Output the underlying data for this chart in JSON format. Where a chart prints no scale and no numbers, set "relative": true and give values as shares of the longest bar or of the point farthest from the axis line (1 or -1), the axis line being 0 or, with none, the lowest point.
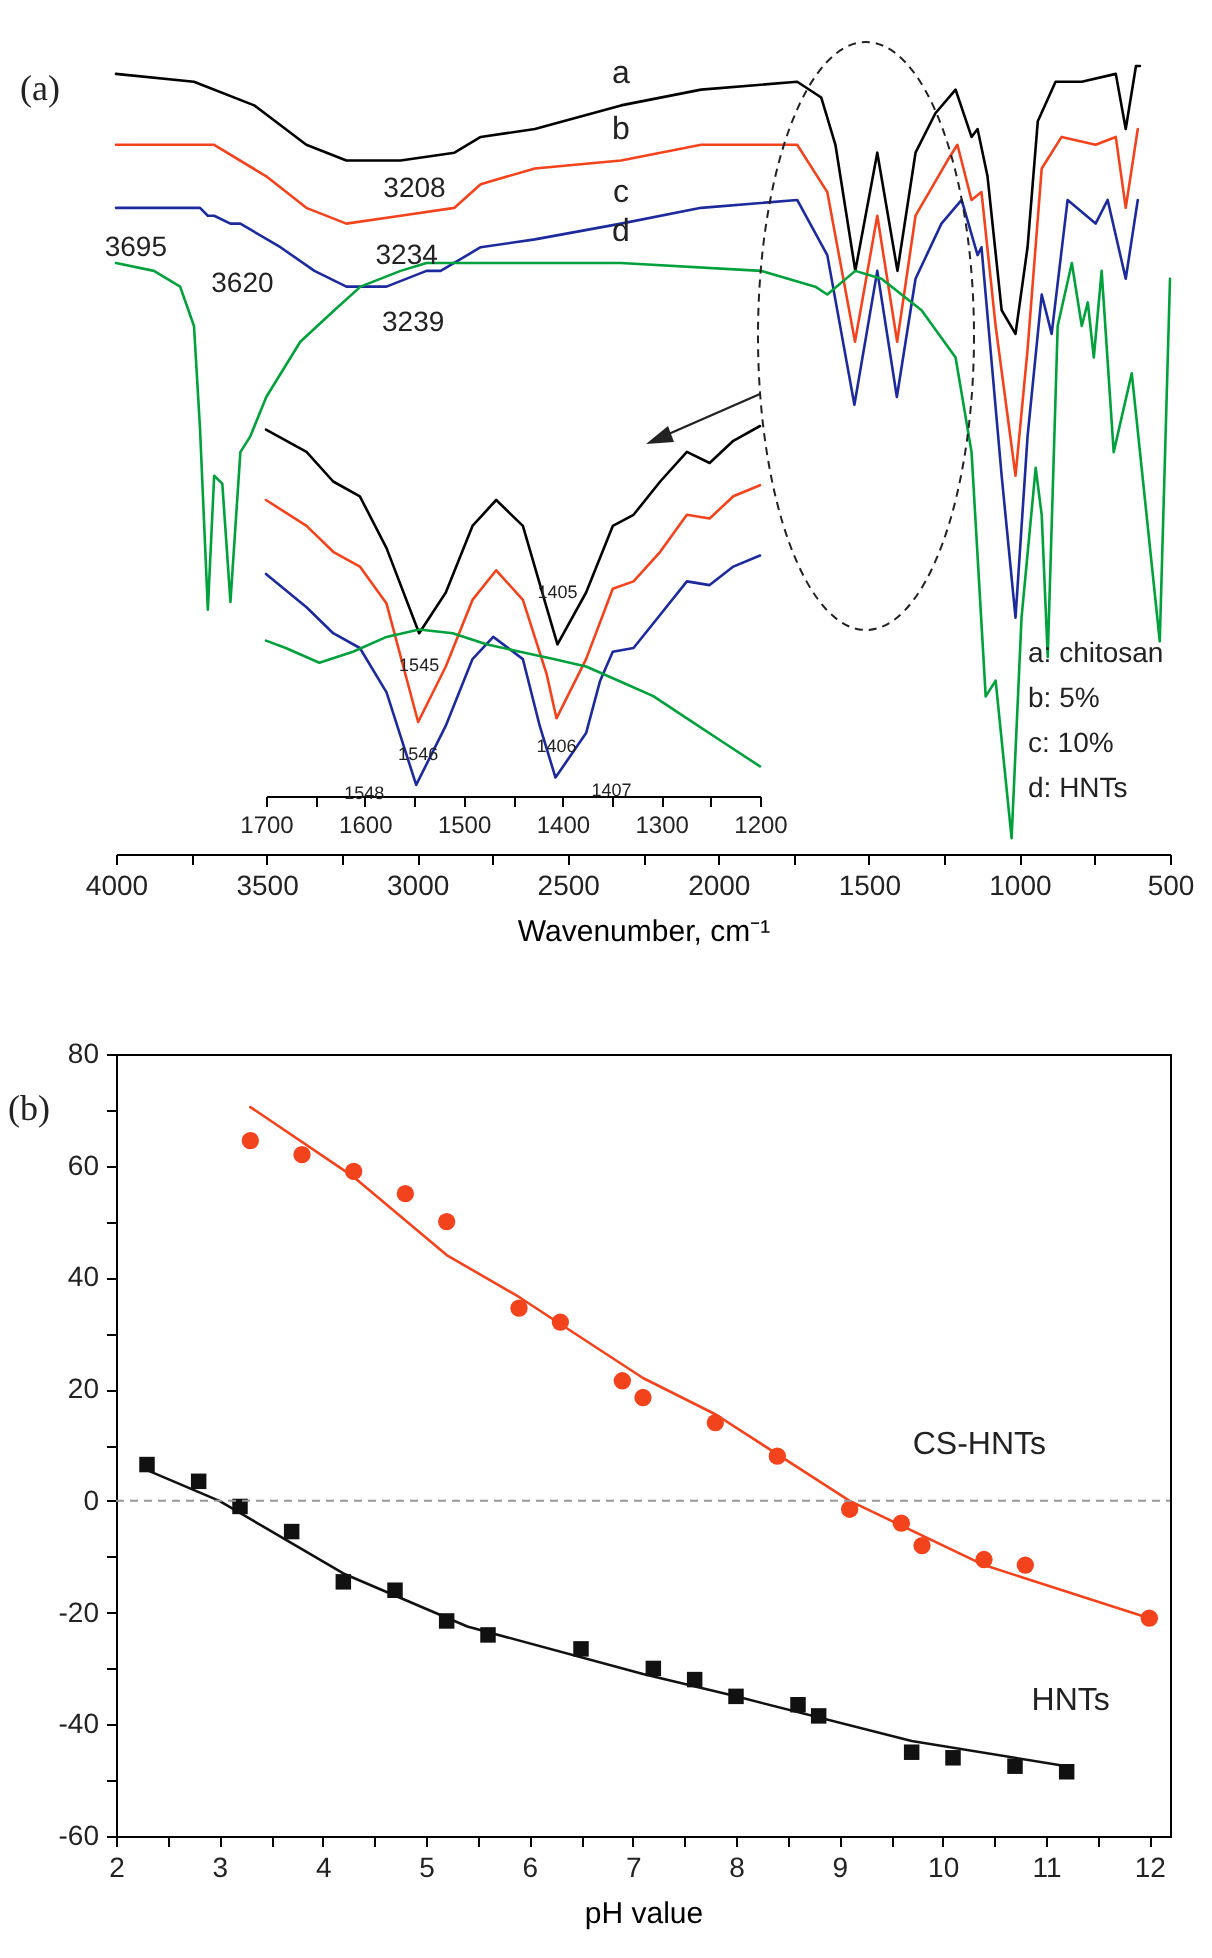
{
  "chart_data": [
    {
      "type": "line",
      "relative": true,
      "xlim": [
        4000,
        500
      ],
      "xlabel": "Wavenumber, cm⁻¹",
      "xticks": [
        4000,
        {
          "value": 3750,
          "label": null
        },
        3500,
        {
          "value": 3250,
          "label": null
        },
        3000,
        {
          "value": 2750,
          "label": null
        },
        2500,
        {
          "value": 2250,
          "label": null
        },
        2000,
        {
          "value": 1750,
          "label": null
        },
        1500,
        {
          "value": 1250,
          "label": null
        },
        1000,
        {
          "value": 750,
          "label": null
        },
        500
      ],
      "series": [
        {
          "name": "a",
          "color": "#000000",
          "x": [
            4000,
            3741,
            3541,
            3368,
            3235,
            3055,
            2876,
            2789,
            2609,
            2323,
            2057,
            1738,
            1658,
            1611,
            1545,
            1472,
            1405,
            1345,
            1279,
            1212,
            1159,
            1139,
            1106,
            1059,
            1013,
            973,
            939,
            880,
            793,
            680,
            647,
            613,
            600
          ],
          "values": [
            0.99,
            0.98,
            0.95,
            0.9,
            0.88,
            0.88,
            0.89,
            0.91,
            0.92,
            0.95,
            0.97,
            0.98,
            0.96,
            0.9,
            0.74,
            0.89,
            0.74,
            0.89,
            0.94,
            0.97,
            0.91,
            0.92,
            0.86,
            0.69,
            0.66,
            0.77,
            0.93,
            0.98,
            0.98,
            0.99,
            0.92,
            1,
            1
          ]
        },
        {
          "name": "b",
          "color": "#f2431d",
          "x": [
            4000,
            3674,
            3501,
            3368,
            3235,
            3055,
            2876,
            2789,
            2609,
            2323,
            2057,
            1738,
            1638,
            1546,
            1472,
            1406,
            1345,
            1239,
            1206,
            1159,
            1126,
            1079,
            1013,
            973,
            926,
            860,
            747,
            680,
            647,
            607
          ],
          "values": [
            0.9,
            0.9,
            0.86,
            0.82,
            0.8,
            0.81,
            0.82,
            0.85,
            0.87,
            0.88,
            0.9,
            0.9,
            0.84,
            0.65,
            0.81,
            0.65,
            0.81,
            0.88,
            0.9,
            0.83,
            0.84,
            0.67,
            0.48,
            0.64,
            0.87,
            0.91,
            0.9,
            0.91,
            0.82,
            0.92
          ]
        },
        {
          "name": "c",
          "color": "#1c2a9c",
          "x": [
            4000,
            3721,
            3695,
            3674,
            3620,
            3587,
            3454,
            3341,
            3235,
            3102,
            2969,
            2922,
            2789,
            2609,
            2323,
            2057,
            1738,
            1638,
            1548,
            1472,
            1407,
            1345,
            1259,
            1192,
            1139,
            1126,
            1059,
            1013,
            973,
            926,
            893,
            840,
            747,
            707,
            647,
            607
          ],
          "values": [
            0.82,
            0.82,
            0.81,
            0.81,
            0.8,
            0.8,
            0.77,
            0.74,
            0.72,
            0.72,
            0.74,
            0.74,
            0.77,
            0.78,
            0.8,
            0.82,
            0.83,
            0.76,
            0.57,
            0.74,
            0.58,
            0.73,
            0.8,
            0.83,
            0.76,
            0.77,
            0.48,
            0.3,
            0.53,
            0.71,
            0.66,
            0.83,
            0.8,
            0.83,
            0.73,
            0.83
          ]
        },
        {
          "name": "d",
          "color": "#00a03c",
          "x": [
            4000,
            3874,
            3787,
            3741,
            3721,
            3695,
            3674,
            3647,
            3620,
            3587,
            3554,
            3501,
            3388,
            3275,
            3188,
            3055,
            2969,
            2323,
            1858,
            1678,
            1638,
            1545,
            1458,
            1325,
            1212,
            1159,
            1112,
            1079,
            1026,
            993,
            946,
            926,
            906,
            873,
            826,
            793,
            773,
            753,
            727,
            687,
            627,
            534,
            500
          ],
          "values": [
            0.75,
            0.74,
            0.72,
            0.67,
            0.54,
            0.31,
            0.48,
            0.47,
            0.32,
            0.51,
            0.53,
            0.58,
            0.65,
            0.69,
            0.72,
            0.74,
            0.75,
            0.75,
            0.74,
            0.72,
            0.71,
            0.74,
            0.73,
            0.69,
            0.63,
            0.51,
            0.2,
            0.22,
            0.02,
            0.3,
            0.49,
            0.43,
            0.25,
            0.67,
            0.75,
            0.67,
            0.7,
            0.63,
            0.74,
            0.51,
            0.61,
            0.27,
            0.73
          ]
        }
      ],
      "annotations": [
        "(a)",
        "a: chitosan",
        "b: 5%",
        "c: 10%",
        "d: HNTs",
        {
          "text": "3208",
          "x": 3208,
          "y": 0.88
        },
        {
          "text": "3234",
          "x": 3234,
          "y": 0.8
        },
        {
          "text": "3239",
          "x": 3239,
          "y": 0.72
        },
        {
          "text": "3695",
          "x": 3695,
          "y": 0.81
        },
        {
          "text": "3620",
          "x": 3620,
          "y": 0.8
        }
      ]
    },
    {
      "type": "line",
      "relative": true,
      "xlim": [
        1700,
        1200
      ],
      "xticks": [
        1700,
        {
          "value": 1650,
          "label": null
        },
        1600,
        {
          "value": 1550,
          "label": null
        },
        1500,
        {
          "value": 1450,
          "label": null
        },
        1400,
        {
          "value": 1350,
          "label": null
        },
        1300,
        {
          "value": 1250,
          "label": null
        },
        1200
      ],
      "series": [
        {
          "color": "#000000",
          "x": [
            1700,
            1659,
            1632,
            1605,
            1578,
            1545,
            1518,
            1491,
            1467,
            1440,
            1416,
            1405,
            1376,
            1349,
            1328,
            1301,
            1274,
            1251,
            1227,
            1200
          ],
          "values": [
            0.99,
            0.93,
            0.85,
            0.81,
            0.67,
            0.44,
            0.55,
            0.73,
            0.8,
            0.73,
            0.51,
            0.41,
            0.55,
            0.73,
            0.76,
            0.85,
            0.93,
            0.9,
            0.96,
            1
          ]
        },
        {
          "color": "#f2431d",
          "x": [
            1700,
            1659,
            1632,
            1605,
            1578,
            1546,
            1518,
            1491,
            1467,
            1440,
            1416,
            1406,
            1376,
            1349,
            1328,
            1301,
            1274,
            1251,
            1227,
            1200
          ],
          "values": [
            0.8,
            0.73,
            0.66,
            0.62,
            0.52,
            0.2,
            0.35,
            0.53,
            0.61,
            0.53,
            0.33,
            0.21,
            0.37,
            0.56,
            0.58,
            0.66,
            0.76,
            0.75,
            0.81,
            0.84
          ]
        },
        {
          "color": "#1c2a9c",
          "x": [
            1700,
            1659,
            1632,
            1605,
            1578,
            1548,
            1518,
            1491,
            1470,
            1440,
            1423,
            1407,
            1376,
            1362,
            1349,
            1328,
            1301,
            1274,
            1251,
            1227,
            1200
          ],
          "values": [
            0.6,
            0.51,
            0.44,
            0.4,
            0.28,
            0.03,
            0.19,
            0.37,
            0.43,
            0.37,
            0.19,
            0.05,
            0.17,
            0.31,
            0.39,
            0.4,
            0.49,
            0.58,
            0.57,
            0.62,
            0.65
          ]
        },
        {
          "color": "#00a03c",
          "x": [
            1700,
            1680,
            1646,
            1612,
            1578,
            1545,
            1511,
            1477,
            1443,
            1409,
            1376,
            1342,
            1308,
            1274,
            1240,
            1200
          ],
          "values": [
            0.42,
            0.4,
            0.36,
            0.39,
            0.43,
            0.45,
            0.44,
            0.41,
            0.39,
            0.37,
            0.35,
            0.31,
            0.27,
            0.21,
            0.15,
            0.08
          ]
        }
      ],
      "annotations": [
        {
          "text": "1545",
          "x": 1545,
          "y": 0.44
        },
        {
          "text": "1405",
          "x": 1405,
          "y": 0.41
        },
        {
          "text": "1546",
          "x": 1546,
          "y": 0.2
        },
        {
          "text": "1406",
          "x": 1406,
          "y": 0.21
        },
        {
          "text": "1548",
          "x": 1548,
          "y": 0.03
        },
        {
          "text": "1407",
          "x": 1407,
          "y": 0.05
        }
      ]
    },
    {
      "type": "scatter",
      "xlim": [
        2,
        12.2
      ],
      "ylim": [
        -60,
        80
      ],
      "xlabel": "pH value",
      "xticks": [
        2,
        {
          "value": 2.5,
          "label": null
        },
        3,
        {
          "value": 3.5,
          "label": null
        },
        4,
        {
          "value": 4.5,
          "label": null
        },
        5,
        {
          "value": 5.5,
          "label": null
        },
        6,
        {
          "value": 6.5,
          "label": null
        },
        7,
        {
          "value": 7.5,
          "label": null
        },
        8,
        {
          "value": 8.5,
          "label": null
        },
        9,
        {
          "value": 9.5,
          "label": null
        },
        10,
        {
          "value": 10.5,
          "label": null
        },
        11,
        {
          "value": 11.5,
          "label": null
        },
        12
      ],
      "yticks": [
        -60,
        {
          "value": -50,
          "label": null
        },
        -40,
        {
          "value": -30,
          "label": null
        },
        -20,
        {
          "value": -10,
          "label": null
        },
        0,
        {
          "value": 10,
          "label": null
        },
        20,
        {
          "value": 30,
          "label": null
        },
        40,
        {
          "value": 50,
          "label": null
        },
        60,
        {
          "value": 70,
          "label": null
        },
        80
      ],
      "series": [
        {
          "name": "CS-HNTs",
          "marker": "circle",
          "color": "#f2431d",
          "x": [
            3.3,
            3.8,
            4.3,
            4.8,
            5.2,
            5.9,
            6.3,
            6.9,
            7.1,
            7.8,
            8.4,
            9.1,
            9.6,
            9.8,
            10.4,
            10.8,
            12
          ],
          "values": [
            64.5,
            62,
            59,
            55,
            50,
            34.5,
            32,
            21.5,
            18.5,
            14,
            8,
            -1.5,
            -4,
            -8,
            -10.5,
            -11.5,
            -21
          ]
        },
        {
          "name": "HNTs",
          "marker": "square",
          "color": "#111111",
          "x": [
            2.3,
            2.8,
            3.2,
            3.7,
            4.2,
            4.7,
            5.2,
            5.6,
            6.5,
            7.2,
            7.6,
            8,
            8.6,
            8.8,
            9.7,
            10.1,
            10.7,
            11.2
          ],
          "values": [
            6.5,
            3.5,
            -1,
            -5.5,
            -14.5,
            -16,
            -21.5,
            -24,
            -26.5,
            -30,
            -32,
            -35,
            -36.5,
            -38.5,
            -45,
            -46,
            -47.5,
            -48.5
          ]
        },
        {
          "type": "line",
          "marker": "none",
          "color": "#f2431d",
          "x": [
            3.3,
            4.3,
            5.2,
            5.9,
            7.1,
            7.8,
            9.1,
            10.4,
            12
          ],
          "values": [
            70.5,
            58,
            44,
            36.5,
            22,
            15.5,
            0,
            -11.5,
            -21
          ]
        },
        {
          "type": "line",
          "marker": "none",
          "color": "#111111",
          "x": [
            2.3,
            3,
            4.2,
            5.4,
            7.1,
            8,
            9.7,
            11.2
          ],
          "values": [
            5.5,
            0,
            -13,
            -22.5,
            -31,
            -35,
            -43,
            -47.5
          ]
        }
      ],
      "ref_lines": [
        {
          "axis": "y",
          "value": 0,
          "color": "#999999",
          "line_style": "dashed"
        }
      ],
      "annotations": [
        "(b)"
      ]
    }
  ]
}
